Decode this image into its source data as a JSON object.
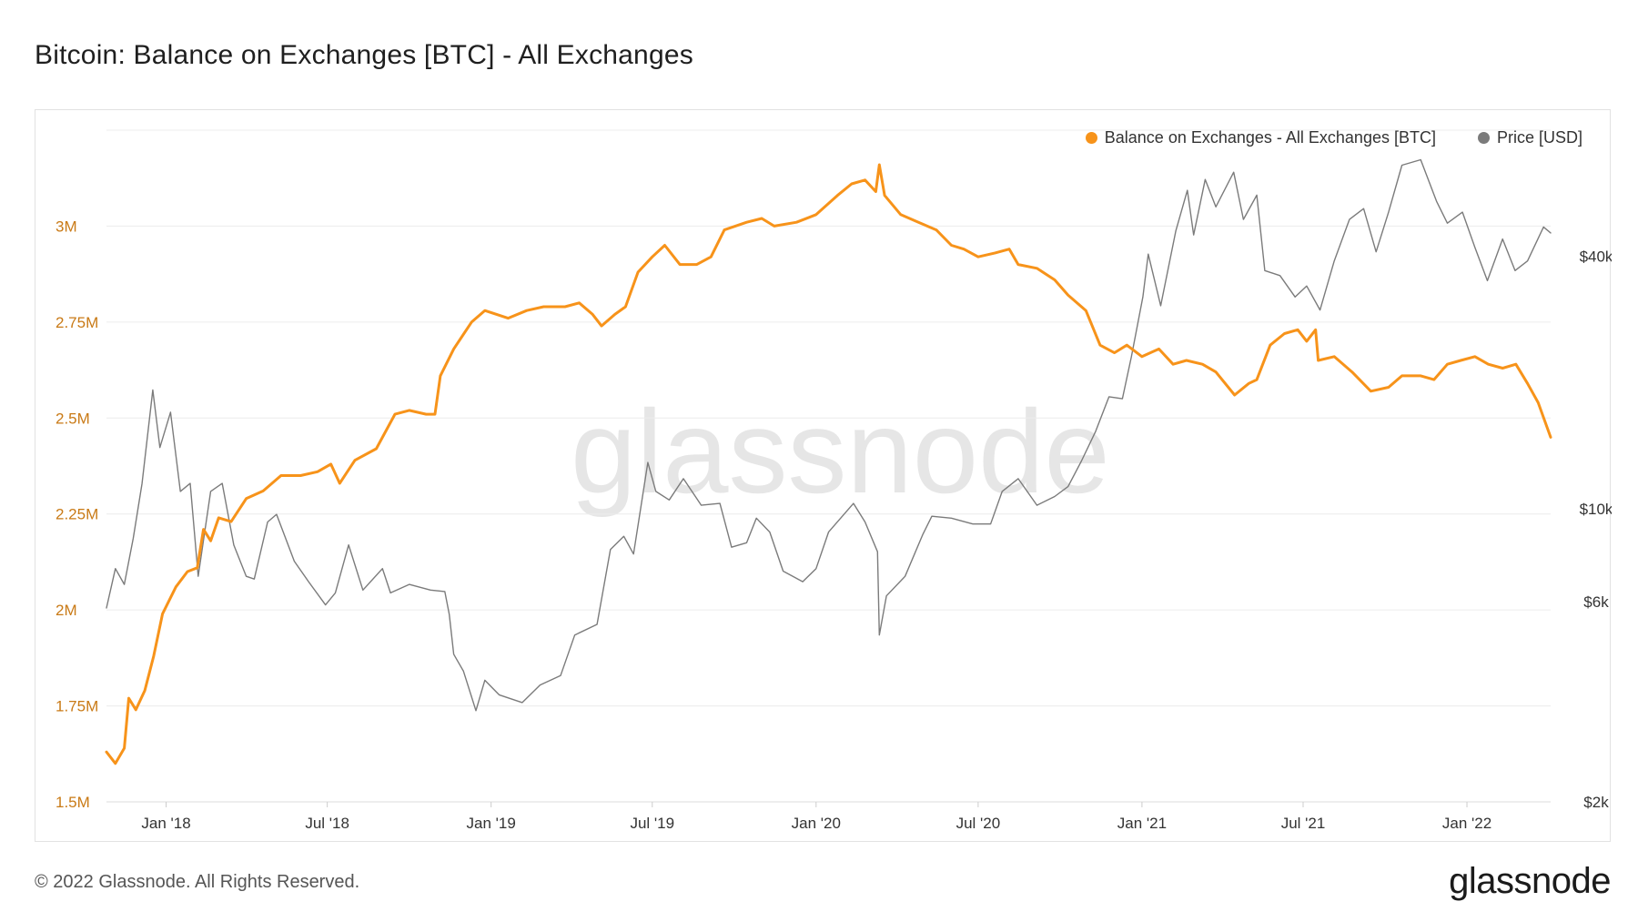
{
  "title": "Bitcoin: Balance on Exchanges [BTC] - All Exchanges",
  "footer": "© 2022 Glassnode. All Rights Reserved.",
  "logo": "glassnode",
  "watermark": "glassnode",
  "colors": {
    "balance": "#f7931a",
    "price": "#7b7b7b",
    "grid": "#ececec",
    "left_tick": "#c97a16"
  },
  "legend": [
    {
      "label": "Balance on Exchanges - All Exchanges [BTC]",
      "color": "#f7931a"
    },
    {
      "label": "Price [USD]",
      "color": "#7b7b7b"
    }
  ],
  "chart_data": {
    "type": "line",
    "x_range": [
      "2017-10-26",
      "2022-04-05"
    ],
    "x_ticks": [
      {
        "label": "Jan '18",
        "date": "2018-01-01"
      },
      {
        "label": "Jul '18",
        "date": "2018-07-01"
      },
      {
        "label": "Jan '19",
        "date": "2019-01-01"
      },
      {
        "label": "Jul '19",
        "date": "2019-07-01"
      },
      {
        "label": "Jan '20",
        "date": "2020-01-01"
      },
      {
        "label": "Jul '20",
        "date": "2020-07-01"
      },
      {
        "label": "Jan '21",
        "date": "2021-01-01"
      },
      {
        "label": "Jul '21",
        "date": "2021-07-01"
      },
      {
        "label": "Jan '22",
        "date": "2022-01-01"
      }
    ],
    "y_left": {
      "range": [
        1500000,
        3250000
      ],
      "ticks": [
        {
          "label": "1.5M",
          "value": 1500000
        },
        {
          "label": "1.75M",
          "value": 1750000
        },
        {
          "label": "2M",
          "value": 2000000
        },
        {
          "label": "2.25M",
          "value": 2250000
        },
        {
          "label": "2.5M",
          "value": 2500000
        },
        {
          "label": "2.75M",
          "value": 2750000
        },
        {
          "label": "3M",
          "value": 3000000
        }
      ]
    },
    "y_right": {
      "scale": "log",
      "range": [
        2000,
        80000
      ],
      "ticks": [
        {
          "label": "$2k",
          "value": 2000
        },
        {
          "label": "$6k",
          "value": 6000
        },
        {
          "label": "$10k",
          "value": 10000
        },
        {
          "label": "$40k",
          "value": 40000
        }
      ]
    },
    "grid": true,
    "legend_position": "top-right",
    "series": [
      {
        "name": "Balance on Exchanges - All Exchanges [BTC]",
        "axis": "left",
        "points": [
          [
            "2017-10-26",
            1630000
          ],
          [
            "2017-11-05",
            1600000
          ],
          [
            "2017-11-15",
            1640000
          ],
          [
            "2017-11-20",
            1770000
          ],
          [
            "2017-11-28",
            1740000
          ],
          [
            "2017-12-08",
            1790000
          ],
          [
            "2017-12-18",
            1880000
          ],
          [
            "2017-12-28",
            1990000
          ],
          [
            "2018-01-12",
            2060000
          ],
          [
            "2018-01-25",
            2100000
          ],
          [
            "2018-02-05",
            2110000
          ],
          [
            "2018-02-12",
            2210000
          ],
          [
            "2018-02-20",
            2180000
          ],
          [
            "2018-03-01",
            2240000
          ],
          [
            "2018-03-15",
            2230000
          ],
          [
            "2018-04-01",
            2290000
          ],
          [
            "2018-04-20",
            2310000
          ],
          [
            "2018-05-10",
            2350000
          ],
          [
            "2018-06-01",
            2350000
          ],
          [
            "2018-06-20",
            2360000
          ],
          [
            "2018-07-05",
            2380000
          ],
          [
            "2018-07-15",
            2330000
          ],
          [
            "2018-08-01",
            2390000
          ],
          [
            "2018-08-25",
            2420000
          ],
          [
            "2018-09-15",
            2510000
          ],
          [
            "2018-10-01",
            2520000
          ],
          [
            "2018-10-20",
            2510000
          ],
          [
            "2018-10-30",
            2510000
          ],
          [
            "2018-11-05",
            2610000
          ],
          [
            "2018-11-20",
            2680000
          ],
          [
            "2018-12-10",
            2750000
          ],
          [
            "2018-12-25",
            2780000
          ],
          [
            "2019-01-20",
            2760000
          ],
          [
            "2019-02-10",
            2780000
          ],
          [
            "2019-03-01",
            2790000
          ],
          [
            "2019-03-25",
            2790000
          ],
          [
            "2019-04-10",
            2800000
          ],
          [
            "2019-04-25",
            2770000
          ],
          [
            "2019-05-05",
            2740000
          ],
          [
            "2019-05-20",
            2770000
          ],
          [
            "2019-06-01",
            2790000
          ],
          [
            "2019-06-15",
            2880000
          ],
          [
            "2019-07-01",
            2920000
          ],
          [
            "2019-07-15",
            2950000
          ],
          [
            "2019-08-01",
            2900000
          ],
          [
            "2019-08-20",
            2900000
          ],
          [
            "2019-09-05",
            2920000
          ],
          [
            "2019-09-20",
            2990000
          ],
          [
            "2019-10-15",
            3010000
          ],
          [
            "2019-11-01",
            3020000
          ],
          [
            "2019-11-15",
            3000000
          ],
          [
            "2019-12-10",
            3010000
          ],
          [
            "2020-01-01",
            3030000
          ],
          [
            "2020-01-25",
            3080000
          ],
          [
            "2020-02-10",
            3110000
          ],
          [
            "2020-02-25",
            3120000
          ],
          [
            "2020-03-08",
            3090000
          ],
          [
            "2020-03-12",
            3160000
          ],
          [
            "2020-03-18",
            3080000
          ],
          [
            "2020-04-05",
            3030000
          ],
          [
            "2020-04-25",
            3010000
          ],
          [
            "2020-05-15",
            2990000
          ],
          [
            "2020-06-01",
            2950000
          ],
          [
            "2020-06-15",
            2940000
          ],
          [
            "2020-07-01",
            2920000
          ],
          [
            "2020-07-20",
            2930000
          ],
          [
            "2020-08-05",
            2940000
          ],
          [
            "2020-08-15",
            2900000
          ],
          [
            "2020-09-05",
            2890000
          ],
          [
            "2020-09-25",
            2860000
          ],
          [
            "2020-10-10",
            2820000
          ],
          [
            "2020-10-30",
            2780000
          ],
          [
            "2020-11-15",
            2690000
          ],
          [
            "2020-12-01",
            2670000
          ],
          [
            "2020-12-15",
            2690000
          ],
          [
            "2021-01-01",
            2660000
          ],
          [
            "2021-01-20",
            2680000
          ],
          [
            "2021-02-05",
            2640000
          ],
          [
            "2021-02-20",
            2650000
          ],
          [
            "2021-03-10",
            2640000
          ],
          [
            "2021-03-25",
            2620000
          ],
          [
            "2021-04-15",
            2560000
          ],
          [
            "2021-05-01",
            2590000
          ],
          [
            "2021-05-10",
            2600000
          ],
          [
            "2021-05-25",
            2690000
          ],
          [
            "2021-06-10",
            2720000
          ],
          [
            "2021-06-25",
            2730000
          ],
          [
            "2021-07-05",
            2700000
          ],
          [
            "2021-07-15",
            2730000
          ],
          [
            "2021-07-18",
            2650000
          ],
          [
            "2021-08-05",
            2660000
          ],
          [
            "2021-08-25",
            2620000
          ],
          [
            "2021-09-15",
            2570000
          ],
          [
            "2021-10-05",
            2580000
          ],
          [
            "2021-10-20",
            2610000
          ],
          [
            "2021-11-10",
            2610000
          ],
          [
            "2021-11-25",
            2600000
          ],
          [
            "2021-12-10",
            2640000
          ],
          [
            "2021-12-25",
            2650000
          ],
          [
            "2022-01-10",
            2660000
          ],
          [
            "2022-01-25",
            2640000
          ],
          [
            "2022-02-10",
            2630000
          ],
          [
            "2022-02-25",
            2640000
          ],
          [
            "2022-03-10",
            2590000
          ],
          [
            "2022-03-22",
            2540000
          ],
          [
            "2022-04-05",
            2450000
          ]
        ]
      },
      {
        "name": "Price [USD]",
        "axis": "right",
        "points": [
          [
            "2017-10-26",
            5800
          ],
          [
            "2017-11-05",
            7200
          ],
          [
            "2017-11-15",
            6600
          ],
          [
            "2017-11-25",
            8500
          ],
          [
            "2017-12-05",
            11500
          ],
          [
            "2017-12-17",
            19200
          ],
          [
            "2017-12-25",
            14000
          ],
          [
            "2018-01-06",
            17000
          ],
          [
            "2018-01-17",
            11000
          ],
          [
            "2018-01-28",
            11500
          ],
          [
            "2018-02-06",
            6900
          ],
          [
            "2018-02-20",
            11000
          ],
          [
            "2018-03-05",
            11500
          ],
          [
            "2018-03-18",
            8200
          ],
          [
            "2018-04-01",
            6900
          ],
          [
            "2018-04-10",
            6800
          ],
          [
            "2018-04-25",
            9300
          ],
          [
            "2018-05-05",
            9700
          ],
          [
            "2018-05-25",
            7500
          ],
          [
            "2018-06-10",
            6700
          ],
          [
            "2018-06-29",
            5900
          ],
          [
            "2018-07-10",
            6300
          ],
          [
            "2018-07-25",
            8200
          ],
          [
            "2018-08-10",
            6400
          ],
          [
            "2018-09-01",
            7200
          ],
          [
            "2018-09-10",
            6300
          ],
          [
            "2018-10-01",
            6600
          ],
          [
            "2018-10-25",
            6400
          ],
          [
            "2018-11-10",
            6350
          ],
          [
            "2018-11-15",
            5600
          ],
          [
            "2018-11-20",
            4500
          ],
          [
            "2018-12-01",
            4100
          ],
          [
            "2018-12-15",
            3300
          ],
          [
            "2018-12-25",
            3900
          ],
          [
            "2019-01-10",
            3600
          ],
          [
            "2019-02-05",
            3450
          ],
          [
            "2019-02-25",
            3800
          ],
          [
            "2019-03-20",
            4000
          ],
          [
            "2019-04-05",
            5000
          ],
          [
            "2019-04-30",
            5300
          ],
          [
            "2019-05-15",
            8000
          ],
          [
            "2019-05-30",
            8600
          ],
          [
            "2019-06-10",
            7800
          ],
          [
            "2019-06-26",
            12900
          ],
          [
            "2019-07-05",
            11000
          ],
          [
            "2019-07-20",
            10500
          ],
          [
            "2019-08-05",
            11800
          ],
          [
            "2019-08-25",
            10200
          ],
          [
            "2019-09-15",
            10300
          ],
          [
            "2019-09-28",
            8100
          ],
          [
            "2019-10-15",
            8300
          ],
          [
            "2019-10-26",
            9500
          ],
          [
            "2019-11-10",
            8800
          ],
          [
            "2019-11-25",
            7100
          ],
          [
            "2019-12-17",
            6700
          ],
          [
            "2020-01-01",
            7200
          ],
          [
            "2020-01-15",
            8800
          ],
          [
            "2020-02-12",
            10300
          ],
          [
            "2020-02-25",
            9300
          ],
          [
            "2020-03-10",
            7900
          ],
          [
            "2020-03-12",
            5000
          ],
          [
            "2020-03-20",
            6200
          ],
          [
            "2020-04-10",
            6900
          ],
          [
            "2020-04-30",
            8700
          ],
          [
            "2020-05-10",
            9600
          ],
          [
            "2020-06-01",
            9500
          ],
          [
            "2020-06-25",
            9200
          ],
          [
            "2020-07-15",
            9200
          ],
          [
            "2020-07-28",
            11000
          ],
          [
            "2020-08-15",
            11800
          ],
          [
            "2020-09-05",
            10200
          ],
          [
            "2020-09-25",
            10700
          ],
          [
            "2020-10-10",
            11300
          ],
          [
            "2020-10-25",
            13000
          ],
          [
            "2020-11-10",
            15300
          ],
          [
            "2020-11-25",
            18500
          ],
          [
            "2020-12-10",
            18300
          ],
          [
            "2020-12-20",
            23000
          ],
          [
            "2021-01-02",
            32000
          ],
          [
            "2021-01-08",
            40500
          ],
          [
            "2021-01-22",
            30500
          ],
          [
            "2021-02-08",
            46000
          ],
          [
            "2021-02-21",
            57500
          ],
          [
            "2021-02-28",
            45000
          ],
          [
            "2021-03-13",
            61000
          ],
          [
            "2021-03-25",
            52500
          ],
          [
            "2021-04-14",
            63500
          ],
          [
            "2021-04-25",
            49000
          ],
          [
            "2021-05-10",
            56000
          ],
          [
            "2021-05-19",
            37000
          ],
          [
            "2021-06-05",
            36000
          ],
          [
            "2021-06-22",
            32000
          ],
          [
            "2021-07-05",
            34000
          ],
          [
            "2021-07-20",
            29800
          ],
          [
            "2021-08-05",
            39000
          ],
          [
            "2021-08-22",
            49000
          ],
          [
            "2021-09-07",
            52000
          ],
          [
            "2021-09-21",
            41000
          ],
          [
            "2021-10-05",
            51000
          ],
          [
            "2021-10-20",
            66000
          ],
          [
            "2021-11-10",
            68000
          ],
          [
            "2021-11-28",
            54000
          ],
          [
            "2021-12-10",
            48000
          ],
          [
            "2021-12-27",
            51000
          ],
          [
            "2022-01-10",
            42000
          ],
          [
            "2022-01-24",
            35000
          ],
          [
            "2022-02-10",
            44000
          ],
          [
            "2022-02-24",
            37000
          ],
          [
            "2022-03-10",
            39000
          ],
          [
            "2022-03-28",
            47000
          ],
          [
            "2022-04-05",
            45500
          ]
        ]
      }
    ]
  }
}
